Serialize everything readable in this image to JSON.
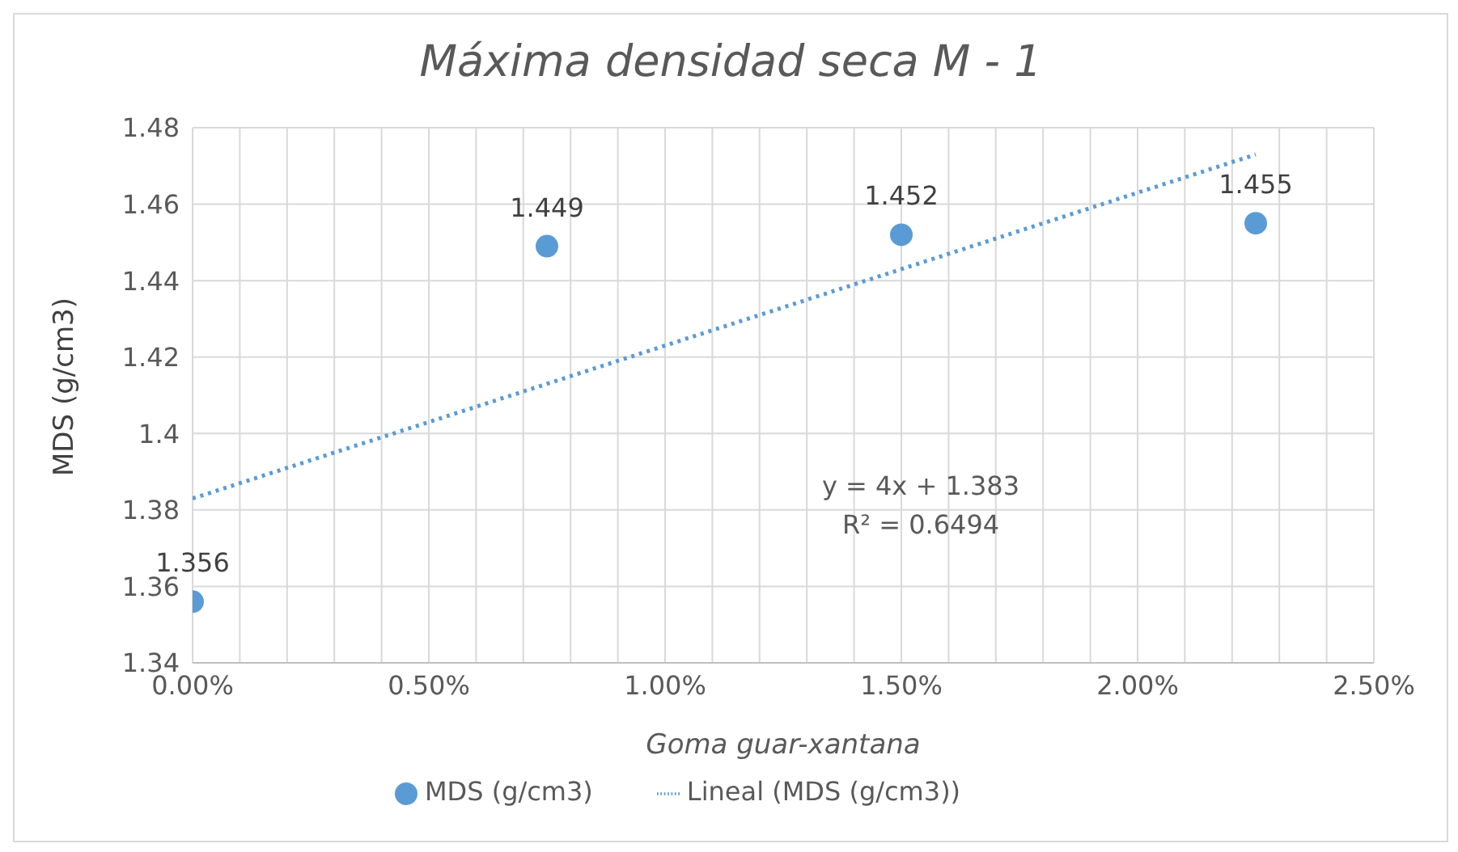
{
  "chart_data": {
    "type": "scatter",
    "title": "Máxima densidad seca M - 1",
    "xlabel": "Goma guar-xantana",
    "ylabel": "MDS (g/cm3)",
    "xlim": [
      0,
      0.025
    ],
    "xticks": [
      {
        "value": 0,
        "label": "0.00%"
      },
      {
        "value": 0.001,
        "label": null
      },
      {
        "value": 0.002,
        "label": null
      },
      {
        "value": 0.003,
        "label": null
      },
      {
        "value": 0.004,
        "label": null
      },
      {
        "value": 0.005,
        "label": "0.50%"
      },
      {
        "value": 0.006,
        "label": null
      },
      {
        "value": 0.007,
        "label": null
      },
      {
        "value": 0.008,
        "label": null
      },
      {
        "value": 0.009,
        "label": null
      },
      {
        "value": 0.01,
        "label": "1.00%"
      },
      {
        "value": 0.011,
        "label": null
      },
      {
        "value": 0.012,
        "label": null
      },
      {
        "value": 0.013,
        "label": null
      },
      {
        "value": 0.014,
        "label": null
      },
      {
        "value": 0.015,
        "label": "1.50%"
      },
      {
        "value": 0.016,
        "label": null
      },
      {
        "value": 0.017,
        "label": null
      },
      {
        "value": 0.018,
        "label": null
      },
      {
        "value": 0.019,
        "label": null
      },
      {
        "value": 0.02,
        "label": "2.00%"
      },
      {
        "value": 0.021,
        "label": null
      },
      {
        "value": 0.022,
        "label": null
      },
      {
        "value": 0.023,
        "label": null
      },
      {
        "value": 0.024,
        "label": null
      },
      {
        "value": 0.025,
        "label": "2.50%"
      }
    ],
    "ylim": [
      1.34,
      1.48
    ],
    "yticks": [
      1.34,
      1.36,
      1.38,
      {
        "value": 1.4,
        "label": "1.4"
      },
      1.42,
      1.44,
      1.46,
      1.48
    ],
    "grid": true,
    "legend": "bottom",
    "series": [
      {
        "name": "MDS (g/cm3)",
        "color": "#5b9bd5",
        "marker": "circle",
        "x": [
          0,
          0.0075,
          0.015,
          0.0225
        ],
        "values": [
          1.356,
          1.449,
          1.452,
          1.455
        ],
        "value_labels": [
          "1.356",
          "1.449",
          "1.452",
          "1.455"
        ]
      },
      {
        "name": "Lineal (MDS (g/cm3))",
        "type": "line",
        "color": "#5b9bd5",
        "marker": "none",
        "line_style": "dotted",
        "x": [
          0,
          0.0225
        ],
        "values": [
          1.383,
          1.473
        ]
      }
    ],
    "annotations": [
      "y = 4x + 1.383",
      "R² = 0.6494"
    ]
  }
}
